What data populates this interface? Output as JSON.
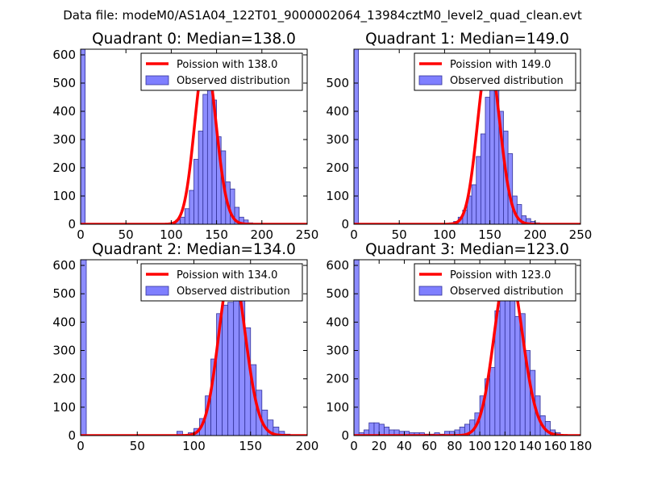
{
  "figure_title": "Data file: modeM0/AS1A04_122T01_9000002064_13984cztM0_level2_quad_clean.evt",
  "colors": {
    "hist_fill": "#7f7fff",
    "hist_edge": "#333399",
    "poisson": "#ff0000"
  },
  "chart_data": [
    {
      "type": "bar",
      "title": "Quadrant 0: Median=138.0",
      "xlim": [
        0,
        250
      ],
      "ylim": [
        0,
        620
      ],
      "xticks": [
        0,
        50,
        100,
        150,
        200,
        250
      ],
      "yticks": [
        0,
        100,
        200,
        300,
        400,
        500,
        600
      ],
      "legend": [
        "Poission with 138.0",
        "Observed distribution"
      ],
      "legend_position": "top-right",
      "poisson_mean": 138.0,
      "poisson_peak": 590,
      "bin_width": 5,
      "bins": [
        [
          0,
          620
        ],
        [
          105,
          15
        ],
        [
          110,
          25
        ],
        [
          115,
          55
        ],
        [
          120,
          120
        ],
        [
          125,
          230
        ],
        [
          130,
          330
        ],
        [
          135,
          460
        ],
        [
          140,
          500
        ],
        [
          145,
          440
        ],
        [
          150,
          310
        ],
        [
          155,
          260
        ],
        [
          160,
          150
        ],
        [
          165,
          125
        ],
        [
          170,
          60
        ],
        [
          175,
          25
        ],
        [
          180,
          15
        ],
        [
          185,
          5
        ]
      ]
    },
    {
      "type": "bar",
      "title": "Quadrant 1: Median=149.0",
      "xlim": [
        0,
        250
      ],
      "ylim": [
        0,
        620
      ],
      "xticks": [
        0,
        50,
        100,
        150,
        200,
        250
      ],
      "yticks": [
        0,
        100,
        200,
        300,
        400,
        500
      ],
      "legend": [
        "Poission with 149.0",
        "Observed distribution"
      ],
      "legend_position": "top-right",
      "poisson_mean": 149.0,
      "poisson_peak": 595,
      "bin_width": 5,
      "bins": [
        [
          0,
          620
        ],
        [
          100,
          3
        ],
        [
          105,
          5
        ],
        [
          110,
          10
        ],
        [
          115,
          25
        ],
        [
          120,
          50
        ],
        [
          125,
          100
        ],
        [
          130,
          140
        ],
        [
          135,
          240
        ],
        [
          140,
          320
        ],
        [
          145,
          450
        ],
        [
          150,
          540
        ],
        [
          155,
          480
        ],
        [
          160,
          400
        ],
        [
          165,
          330
        ],
        [
          170,
          250
        ],
        [
          175,
          100
        ],
        [
          180,
          70
        ],
        [
          185,
          30
        ],
        [
          190,
          20
        ],
        [
          195,
          10
        ],
        [
          200,
          5
        ]
      ]
    },
    {
      "type": "bar",
      "title": "Quadrant 2: Median=134.0",
      "xlim": [
        0,
        200
      ],
      "ylim": [
        0,
        620
      ],
      "xticks": [
        0,
        50,
        100,
        150,
        200
      ],
      "yticks": [
        0,
        100,
        200,
        300,
        400,
        500,
        600
      ],
      "legend": [
        "Poission with 134.0",
        "Observed distribution"
      ],
      "legend_position": "top-right",
      "poisson_mean": 134.0,
      "poisson_peak": 595,
      "bin_width": 5,
      "bins": [
        [
          0,
          620
        ],
        [
          85,
          15
        ],
        [
          95,
          10
        ],
        [
          100,
          25
        ],
        [
          105,
          60
        ],
        [
          110,
          140
        ],
        [
          115,
          270
        ],
        [
          120,
          430
        ],
        [
          125,
          460
        ],
        [
          130,
          470
        ],
        [
          135,
          530
        ],
        [
          140,
          510
        ],
        [
          145,
          380
        ],
        [
          150,
          250
        ],
        [
          155,
          160
        ],
        [
          160,
          90
        ],
        [
          165,
          55
        ],
        [
          170,
          30
        ],
        [
          175,
          15
        ],
        [
          180,
          5
        ]
      ]
    },
    {
      "type": "bar",
      "title": "Quadrant 3: Median=123.0",
      "xlim": [
        0,
        180
      ],
      "ylim": [
        0,
        620
      ],
      "xticks": [
        0,
        20,
        40,
        60,
        80,
        100,
        120,
        140,
        160,
        180
      ],
      "yticks": [
        0,
        100,
        200,
        300,
        400,
        500,
        600
      ],
      "legend": [
        "Poission with 123.0",
        "Observed distribution"
      ],
      "legend_position": "top-right",
      "poisson_mean": 123.0,
      "poisson_peak": 595,
      "bin_width": 4,
      "bins": [
        [
          0,
          620
        ],
        [
          4,
          10
        ],
        [
          8,
          20
        ],
        [
          12,
          45
        ],
        [
          16,
          45
        ],
        [
          20,
          40
        ],
        [
          24,
          30
        ],
        [
          28,
          20
        ],
        [
          32,
          20
        ],
        [
          36,
          15
        ],
        [
          40,
          15
        ],
        [
          44,
          10
        ],
        [
          48,
          10
        ],
        [
          52,
          10
        ],
        [
          56,
          5
        ],
        [
          60,
          5
        ],
        [
          64,
          10
        ],
        [
          68,
          5
        ],
        [
          72,
          15
        ],
        [
          76,
          15
        ],
        [
          80,
          20
        ],
        [
          84,
          30
        ],
        [
          88,
          40
        ],
        [
          92,
          55
        ],
        [
          96,
          80
        ],
        [
          100,
          140
        ],
        [
          104,
          200
        ],
        [
          108,
          240
        ],
        [
          112,
          440
        ],
        [
          116,
          540
        ],
        [
          120,
          480
        ],
        [
          124,
          510
        ],
        [
          128,
          420
        ],
        [
          132,
          430
        ],
        [
          136,
          300
        ],
        [
          140,
          230
        ],
        [
          144,
          140
        ],
        [
          148,
          70
        ],
        [
          152,
          50
        ],
        [
          156,
          20
        ],
        [
          160,
          10
        ]
      ]
    }
  ]
}
